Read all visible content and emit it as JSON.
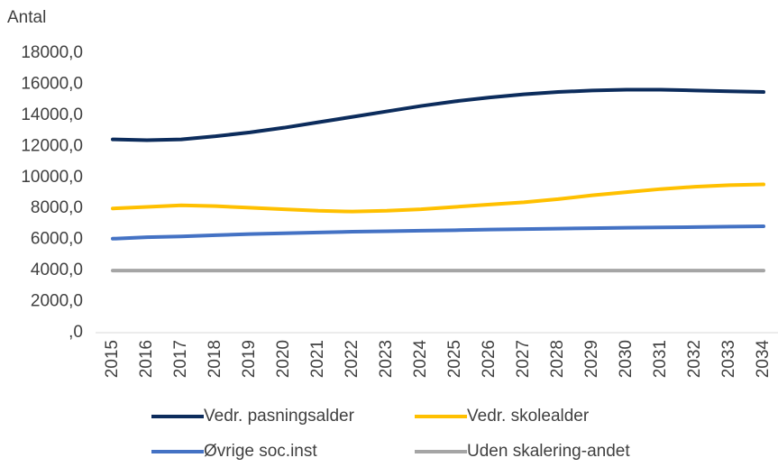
{
  "chart_data": {
    "type": "line",
    "y_label": "Antal",
    "categories": [
      "2015",
      "2016",
      "2017",
      "2018",
      "2019",
      "2020",
      "2021",
      "2022",
      "2023",
      "2024",
      "2025",
      "2026",
      "2027",
      "2028",
      "2029",
      "2030",
      "2031",
      "2032",
      "2033",
      "2034"
    ],
    "series": [
      {
        "name": "Vedr. pasningsalder",
        "color": "#0c2c5c",
        "values": [
          12450,
          12400,
          12450,
          12650,
          12900,
          13200,
          13550,
          13900,
          14250,
          14600,
          14900,
          15150,
          15350,
          15500,
          15600,
          15650,
          15650,
          15600,
          15550,
          15500
        ]
      },
      {
        "name": "Vedr. skolealder",
        "color": "#ffc000",
        "values": [
          8000,
          8100,
          8200,
          8150,
          8050,
          7950,
          7850,
          7800,
          7850,
          7950,
          8100,
          8250,
          8400,
          8600,
          8850,
          9050,
          9250,
          9400,
          9500,
          9550
        ]
      },
      {
        "name": "Øvrige soc.inst",
        "color": "#4472c4",
        "values": [
          6050,
          6150,
          6200,
          6280,
          6350,
          6400,
          6450,
          6500,
          6530,
          6570,
          6600,
          6640,
          6670,
          6700,
          6730,
          6760,
          6780,
          6800,
          6830,
          6850
        ]
      },
      {
        "name": "Uden skalering-andet",
        "color": "#a5a5a5",
        "values": [
          4000,
          4000,
          4000,
          4000,
          4000,
          4000,
          4000,
          4000,
          4000,
          4000,
          4000,
          4000,
          4000,
          4000,
          4000,
          4000,
          4000,
          4000,
          4000,
          4000
        ]
      }
    ],
    "ylim": [
      0,
      18000
    ],
    "yticks": [
      {
        "value": 0,
        "label": ",0"
      },
      {
        "value": 2000,
        "label": "2000,0"
      },
      {
        "value": 4000,
        "label": "4000,0"
      },
      {
        "value": 6000,
        "label": "6000,0"
      },
      {
        "value": 8000,
        "label": "8000,0"
      },
      {
        "value": 10000,
        "label": "10000,0"
      },
      {
        "value": 12000,
        "label": "12000,0"
      },
      {
        "value": 14000,
        "label": "14000,0"
      },
      {
        "value": 16000,
        "label": "16000,0"
      },
      {
        "value": 18000,
        "label": "18000,0"
      }
    ],
    "grid": false
  }
}
